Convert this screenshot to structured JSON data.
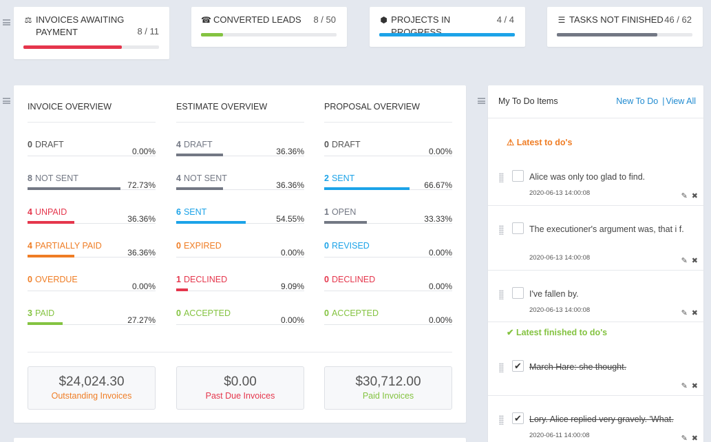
{
  "colors": {
    "red": "#e5364c",
    "orange": "#ef7d25",
    "blue": "#1ca3e8",
    "green": "#84c341",
    "grey": "#737884",
    "link": "#1f8ad0"
  },
  "stats": [
    {
      "icon": "balance-scale-icon",
      "glyph": "⚖",
      "title": "Invoices Awaiting Payment",
      "count": "8 / 11",
      "progress": 0.7273,
      "color": "#e5364c"
    },
    {
      "icon": "tty-icon",
      "glyph": "☎",
      "title": "Converted Leads",
      "count": "8 / 50",
      "progress": 0.16,
      "color": "#84c341"
    },
    {
      "icon": "cubes-icon",
      "glyph": "⬢",
      "title": "Projects In Progress",
      "count": "4 / 4",
      "progress": 1.0,
      "color": "#1ca3e8"
    },
    {
      "icon": "tasks-icon",
      "glyph": "☰",
      "title": "Tasks Not Finished",
      "count": "46 / 62",
      "progress": 0.7419,
      "color": "#737884"
    }
  ],
  "overview": [
    {
      "title": "Invoice Overview",
      "items": [
        {
          "count": "0",
          "label": "Draft",
          "pct": "0.00%",
          "value": 0.0,
          "color": "#737884"
        },
        {
          "count": "8",
          "label": "Not Sent",
          "pct": "72.73%",
          "value": 0.7273,
          "color": "#737884"
        },
        {
          "count": "4",
          "label": "Unpaid",
          "pct": "36.36%",
          "value": 0.3636,
          "color": "#e5364c"
        },
        {
          "count": "4",
          "label": "Partially Paid",
          "pct": "36.36%",
          "value": 0.3636,
          "color": "#ef7d25"
        },
        {
          "count": "0",
          "label": "Overdue",
          "pct": "0.00%",
          "value": 0.0,
          "color": "#ef7d25"
        },
        {
          "count": "3",
          "label": "Paid",
          "pct": "27.27%",
          "value": 0.2727,
          "color": "#84c341"
        }
      ]
    },
    {
      "title": "Estimate Overview",
      "items": [
        {
          "count": "4",
          "label": "Draft",
          "pct": "36.36%",
          "value": 0.3636,
          "color": "#737884"
        },
        {
          "count": "4",
          "label": "Not Sent",
          "pct": "36.36%",
          "value": 0.3636,
          "color": "#737884"
        },
        {
          "count": "6",
          "label": "Sent",
          "pct": "54.55%",
          "value": 0.5455,
          "color": "#1ca3e8"
        },
        {
          "count": "0",
          "label": "Expired",
          "pct": "0.00%",
          "value": 0.0,
          "color": "#ef7d25"
        },
        {
          "count": "1",
          "label": "Declined",
          "pct": "9.09%",
          "value": 0.0909,
          "color": "#e5364c"
        },
        {
          "count": "0",
          "label": "Accepted",
          "pct": "0.00%",
          "value": 0.0,
          "color": "#84c341"
        }
      ]
    },
    {
      "title": "Proposal Overview",
      "items": [
        {
          "count": "0",
          "label": "Draft",
          "pct": "0.00%",
          "value": 0.0,
          "color": "#737884"
        },
        {
          "count": "2",
          "label": "Sent",
          "pct": "66.67%",
          "value": 0.6667,
          "color": "#1ca3e8"
        },
        {
          "count": "1",
          "label": "Open",
          "pct": "33.33%",
          "value": 0.3333,
          "color": "#737884"
        },
        {
          "count": "0",
          "label": "Revised",
          "pct": "0.00%",
          "value": 0.0,
          "color": "#1ca3e8"
        },
        {
          "count": "0",
          "label": "Declined",
          "pct": "0.00%",
          "value": 0.0,
          "color": "#e5364c"
        },
        {
          "count": "0",
          "label": "Accepted",
          "pct": "0.00%",
          "value": 0.0,
          "color": "#84c341"
        }
      ]
    }
  ],
  "totals": [
    {
      "amount": "$24,024.30",
      "label": "Outstanding Invoices",
      "color": "#ef7d25"
    },
    {
      "amount": "$0.00",
      "label": "Past Due Invoices",
      "color": "#e5364c"
    },
    {
      "amount": "$30,712.00",
      "label": "Paid Invoices",
      "color": "#84c341"
    }
  ],
  "todo": {
    "title": "My To Do Items",
    "new_label": "New To Do",
    "view_all_label": "View All",
    "separator": "|",
    "latest_label": "Latest to do's",
    "finished_label": "Latest finished to do's",
    "pending": [
      {
        "text": "Alice was only too glad to find.",
        "date": "2020-06-13 14:00:08"
      },
      {
        "text": "The executioner's argument was, that i f.",
        "date": "2020-06-13 14:00:08"
      },
      {
        "text": "I've fallen by.",
        "date": "2020-06-13 14:00:08"
      }
    ],
    "finished": [
      {
        "text": "March Hare: she thought.",
        "date": ""
      },
      {
        "text": "Lory. Alice replied very gravely. 'What.",
        "date": "2020-06-11 14:00:08"
      }
    ]
  }
}
